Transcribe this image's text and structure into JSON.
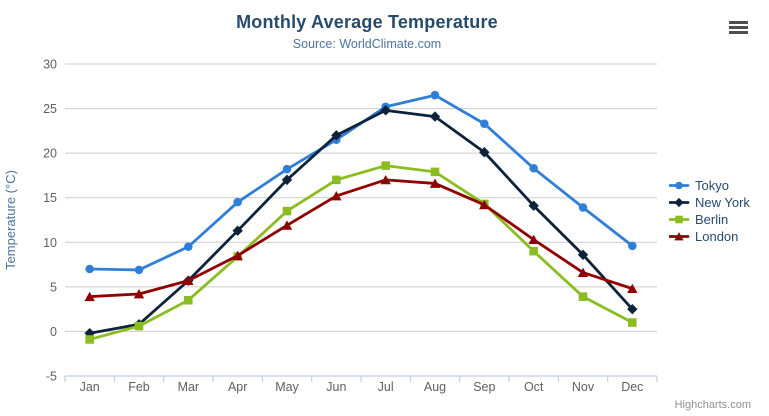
{
  "credits": {
    "label": "Highcharts.com"
  },
  "menu": {
    "icon": "hamburger-icon"
  },
  "colors": {
    "title": "#274b6d",
    "subtitle": "#4d759e",
    "axis_label": "#606060",
    "axis_title": "#4d759e",
    "grid_line": "#cccccc",
    "axis_line": "#c0d0e0",
    "legend_text": "#274b6d",
    "credits_text": "#909090",
    "menu_icon": "#4d4d4d",
    "background": "#ffffff"
  },
  "chart_data": {
    "type": "line",
    "title": "Monthly Average Temperature",
    "subtitle": "Source: WorldClimate.com",
    "xlabel": "",
    "ylabel": "Temperature (°C)",
    "categories": [
      "Jan",
      "Feb",
      "Mar",
      "Apr",
      "May",
      "Jun",
      "Jul",
      "Aug",
      "Sep",
      "Oct",
      "Nov",
      "Dec"
    ],
    "ylim": [
      -5,
      30
    ],
    "yticks": [
      -5,
      0,
      5,
      10,
      15,
      20,
      25,
      30
    ],
    "grid": true,
    "legend_position": "right",
    "series": [
      {
        "name": "Tokyo",
        "color": "#2f7ed8",
        "marker": "circle",
        "values": [
          7.0,
          6.9,
          9.5,
          14.5,
          18.2,
          21.5,
          25.2,
          26.5,
          23.3,
          18.3,
          13.9,
          9.6
        ]
      },
      {
        "name": "New York",
        "color": "#0d233a",
        "marker": "diamond",
        "values": [
          -0.2,
          0.8,
          5.7,
          11.3,
          17.0,
          22.0,
          24.8,
          24.1,
          20.1,
          14.1,
          8.6,
          2.5
        ]
      },
      {
        "name": "Berlin",
        "color": "#8bbc21",
        "marker": "square",
        "values": [
          -0.9,
          0.6,
          3.5,
          8.4,
          13.5,
          17.0,
          18.6,
          17.9,
          14.3,
          9.0,
          3.9,
          1.0
        ]
      },
      {
        "name": "London",
        "color": "#910000",
        "marker": "triangle",
        "values": [
          3.9,
          4.2,
          5.7,
          8.5,
          11.9,
          15.2,
          17.0,
          16.6,
          14.2,
          10.3,
          6.6,
          4.8
        ]
      }
    ]
  }
}
